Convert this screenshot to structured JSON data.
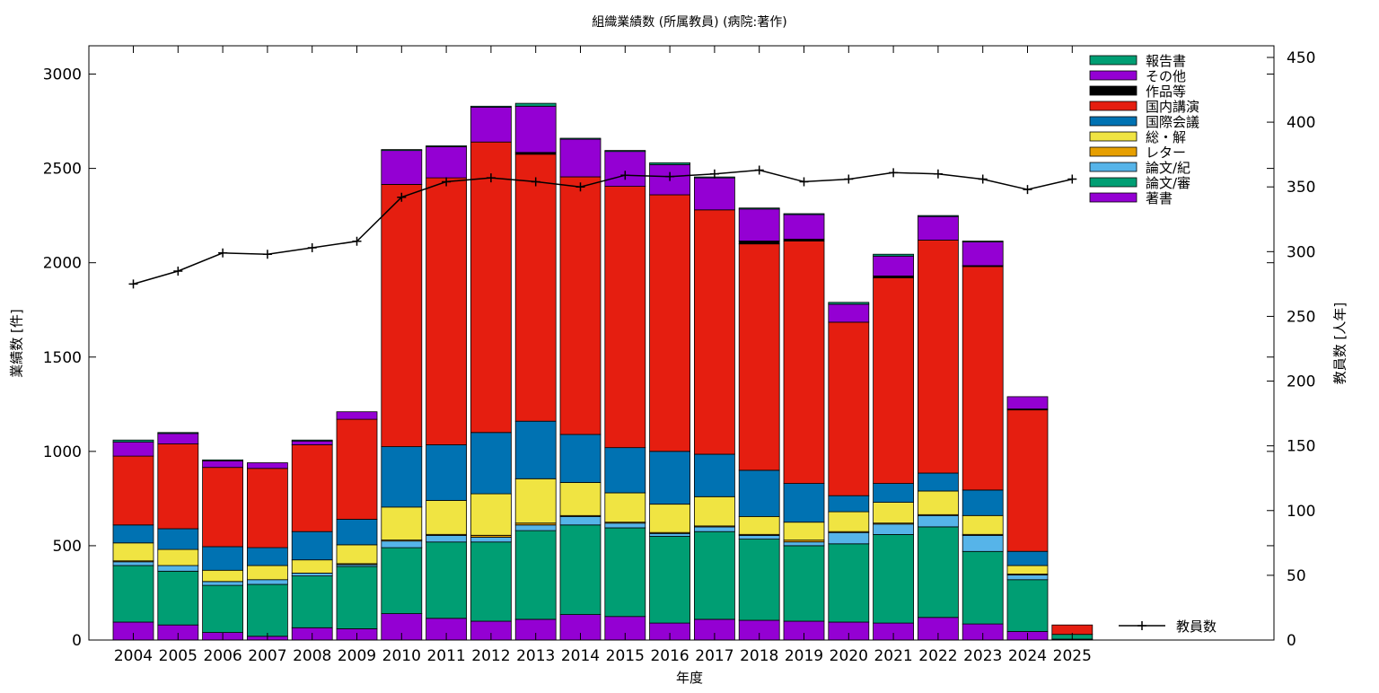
{
  "chart_data": {
    "type": "bar",
    "title": "組織業績数 (所属教員) (病院:著作)",
    "xlabel": "年度",
    "ylabel": "業績数 [件]",
    "y2label": "教員数 [人年]",
    "ylim": [
      0,
      3150
    ],
    "y2lim": [
      0,
      459
    ],
    "yticks": [
      0,
      500,
      1000,
      1500,
      2000,
      2500,
      3000
    ],
    "y2ticks": [
      0,
      50,
      100,
      150,
      200,
      250,
      300,
      350,
      400,
      450
    ],
    "stacked": true,
    "grid": false,
    "legend_position": "top-right",
    "categories": [
      "2004",
      "2005",
      "2006",
      "2007",
      "2008",
      "2009",
      "2010",
      "2011",
      "2012",
      "2013",
      "2014",
      "2015",
      "2016",
      "2017",
      "2018",
      "2019",
      "2020",
      "2021",
      "2022",
      "2023",
      "2024",
      "2025"
    ],
    "series": [
      {
        "name": "著書",
        "color": "#9400d3",
        "values": [
          95,
          80,
          40,
          20,
          65,
          60,
          140,
          115,
          100,
          110,
          135,
          125,
          90,
          110,
          105,
          100,
          95,
          90,
          120,
          85,
          45,
          5
        ]
      },
      {
        "name": "論文/審",
        "color": "#009e73",
        "values": [
          300,
          285,
          250,
          275,
          275,
          330,
          350,
          405,
          420,
          470,
          475,
          470,
          460,
          465,
          430,
          400,
          415,
          470,
          480,
          385,
          275,
          25
        ]
      },
      {
        "name": "論文/紀",
        "color": "#56b4e9",
        "values": [
          20,
          30,
          20,
          25,
          15,
          10,
          35,
          35,
          25,
          30,
          45,
          25,
          15,
          25,
          20,
          20,
          60,
          55,
          60,
          85,
          25,
          0
        ]
      },
      {
        "name": "レター",
        "color": "#e69f00",
        "values": [
          5,
          0,
          0,
          0,
          0,
          5,
          5,
          5,
          10,
          10,
          5,
          5,
          5,
          5,
          5,
          10,
          5,
          5,
          5,
          5,
          5,
          0
        ]
      },
      {
        "name": "総・解",
        "color": "#f0e442",
        "values": [
          95,
          85,
          60,
          75,
          70,
          100,
          175,
          180,
          220,
          235,
          175,
          155,
          150,
          155,
          95,
          95,
          105,
          110,
          125,
          100,
          45,
          0
        ]
      },
      {
        "name": "国際会議",
        "color": "#0072b2",
        "values": [
          95,
          110,
          125,
          95,
          150,
          135,
          320,
          295,
          325,
          305,
          255,
          240,
          280,
          225,
          245,
          205,
          85,
          100,
          95,
          135,
          75,
          0
        ]
      },
      {
        "name": "国内講演",
        "color": "#e51e10",
        "values": [
          365,
          450,
          420,
          420,
          460,
          530,
          1390,
          1415,
          1540,
          1415,
          1365,
          1385,
          1360,
          1295,
          1200,
          1285,
          920,
          1090,
          1235,
          1185,
          750,
          50
        ]
      },
      {
        "name": "作品等",
        "color": "#000000",
        "values": [
          0,
          0,
          0,
          0,
          0,
          0,
          0,
          0,
          0,
          10,
          0,
          0,
          0,
          0,
          15,
          10,
          0,
          10,
          0,
          5,
          5,
          0
        ]
      },
      {
        "name": "その他",
        "color": "#9400d3",
        "values": [
          75,
          55,
          35,
          30,
          20,
          40,
          180,
          165,
          185,
          245,
          200,
          185,
          160,
          170,
          170,
          130,
          95,
          105,
          125,
          125,
          65,
          0
        ]
      },
      {
        "name": "報告書",
        "color": "#009e73",
        "values": [
          10,
          5,
          5,
          0,
          5,
          0,
          5,
          5,
          5,
          15,
          5,
          5,
          10,
          5,
          5,
          5,
          10,
          10,
          5,
          5,
          0,
          0
        ]
      }
    ],
    "line_series": {
      "name": "教員数",
      "color": "#000000",
      "axis": "y2",
      "values": [
        275,
        285,
        299,
        298,
        303,
        308,
        342,
        354,
        357,
        354,
        350,
        359,
        358,
        360,
        363,
        354,
        356,
        361,
        360,
        356,
        348,
        356
      ]
    }
  }
}
